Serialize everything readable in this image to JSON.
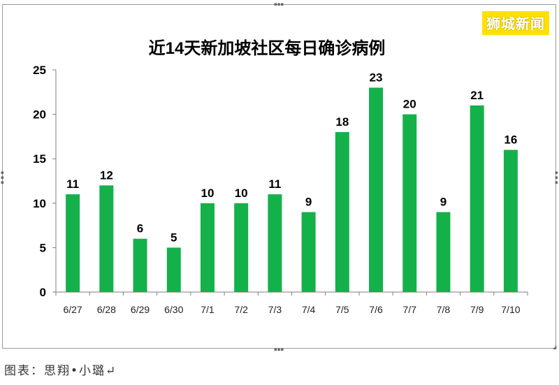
{
  "brand": {
    "label": "狮城新闻",
    "color": "#ffe100"
  },
  "caption": "图表：思翔•小璐↵",
  "colors": {
    "bar": "#14b14b",
    "axis": "#7f7f7f"
  },
  "chart_data": {
    "type": "bar",
    "title": "近14天新加坡社区每日确诊病例",
    "xlabel": "",
    "ylabel": "",
    "categories": [
      "6/27",
      "6/28",
      "6/29",
      "6/30",
      "7/1",
      "7/2",
      "7/3",
      "7/4",
      "7/5",
      "7/6",
      "7/7",
      "7/8",
      "7/9",
      "7/10"
    ],
    "values": [
      11,
      12,
      6,
      5,
      10,
      10,
      11,
      9,
      18,
      23,
      20,
      9,
      21,
      16
    ],
    "ylim": [
      0,
      25
    ],
    "yticks": [
      0,
      5,
      10,
      15,
      20,
      25
    ],
    "grid": false,
    "legend": "none",
    "data_labels": true
  }
}
